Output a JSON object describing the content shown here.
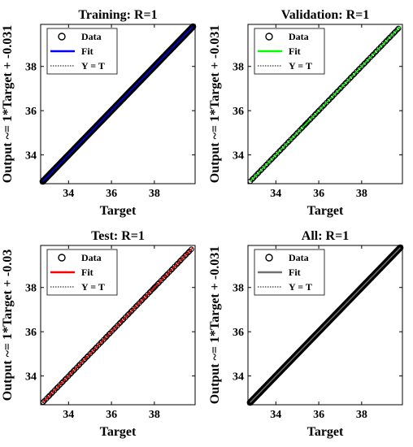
{
  "chart_data": [
    {
      "type": "scatter",
      "title": "Training: R=1",
      "xlabel": "Target",
      "ylabel": "Output ~= 1*Target + -0.031",
      "xlim": [
        32.7,
        39.9
      ],
      "ylim": [
        32.7,
        39.9
      ],
      "xticks": [
        34,
        36,
        38
      ],
      "yticks": [
        34,
        36,
        38
      ],
      "x_range": [
        32.8,
        39.8
      ],
      "fit_color": "#0000ff",
      "marker_fill": "none",
      "legend": [
        "Data",
        "Fit",
        "Y = T"
      ],
      "legend_position": "top-left",
      "grid": false
    },
    {
      "type": "scatter",
      "title": "Validation: R=1",
      "xlabel": "Target",
      "ylabel": "Output ~= 1*Target + -0.031",
      "xlim": [
        32.7,
        39.9
      ],
      "ylim": [
        32.7,
        39.9
      ],
      "xticks": [
        34,
        36,
        38
      ],
      "yticks": [
        34,
        36,
        38
      ],
      "x_range": [
        32.8,
        39.8
      ],
      "fit_color": "#00ff00",
      "marker_fill": "none",
      "legend": [
        "Data",
        "Fit",
        "Y = T"
      ],
      "legend_position": "top-left",
      "grid": false
    },
    {
      "type": "scatter",
      "title": "Test: R=1",
      "xlabel": "Target",
      "ylabel": "Output ~= 1*Target + -0.03",
      "xlim": [
        32.7,
        39.9
      ],
      "ylim": [
        32.7,
        39.9
      ],
      "xticks": [
        34,
        36,
        38
      ],
      "yticks": [
        34,
        36,
        38
      ],
      "x_range": [
        32.8,
        39.8
      ],
      "fit_color": "#ff0000",
      "marker_fill": "none",
      "legend": [
        "Data",
        "Fit",
        "Y = T"
      ],
      "legend_position": "top-left",
      "grid": false
    },
    {
      "type": "scatter",
      "title": "All: R=1",
      "xlabel": "Target",
      "ylabel": "Output ~= 1*Target + -0.031",
      "xlim": [
        32.7,
        39.9
      ],
      "ylim": [
        32.7,
        39.9
      ],
      "xticks": [
        34,
        36,
        38
      ],
      "yticks": [
        34,
        36,
        38
      ],
      "x_range": [
        32.8,
        39.8
      ],
      "fit_color": "#707070",
      "marker_fill": "none",
      "legend": [
        "Data",
        "Fit",
        "Y = T"
      ],
      "legend_position": "top-left",
      "grid": false
    }
  ]
}
